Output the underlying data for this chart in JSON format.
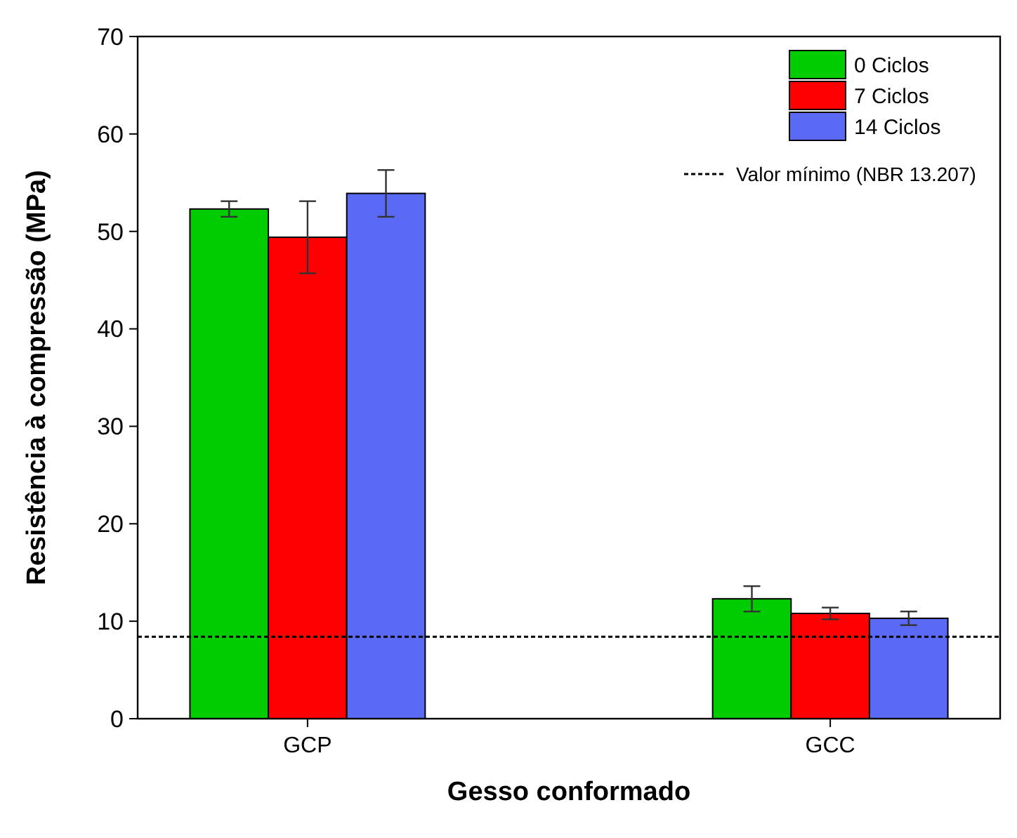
{
  "chart_data": {
    "type": "bar",
    "xlabel": "Gesso conformado",
    "ylabel": "Resistência à compressão (MPa)",
    "categories": [
      "GCP",
      "GCC"
    ],
    "series": [
      {
        "name": "0 Ciclos",
        "color": "#00cc00",
        "values": [
          52.3,
          12.3
        ],
        "errors": [
          0.8,
          1.3
        ]
      },
      {
        "name": "7 Ciclos",
        "color": "#ff0000",
        "values": [
          49.4,
          10.8
        ],
        "errors": [
          3.7,
          0.6
        ]
      },
      {
        "name": "14 Ciclos",
        "color": "#5a6af5",
        "values": [
          53.9,
          10.3
        ],
        "errors": [
          2.4,
          0.7
        ]
      }
    ],
    "ylim": [
      0,
      70
    ],
    "yticks": [
      0,
      10,
      20,
      30,
      40,
      50,
      60,
      70
    ],
    "legend": "top right",
    "grid": false,
    "ref_lines": [
      {
        "axis": "y",
        "value": 8.4,
        "label": "Valor mínimo (NBR 13.207)",
        "color": "#000000",
        "line_style": "dotted"
      }
    ]
  }
}
